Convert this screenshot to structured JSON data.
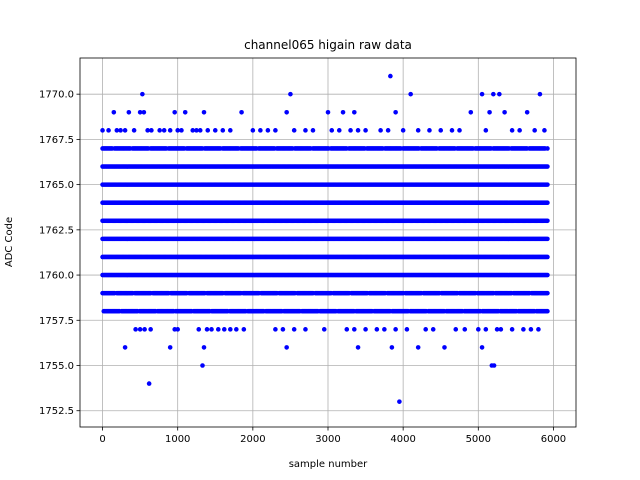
{
  "chart_data": {
    "type": "scatter",
    "title": "channel065 higain raw data",
    "xlabel": "sample number",
    "ylabel": "ADC Code",
    "xlim": [
      -300,
      6300
    ],
    "ylim": [
      1751.6,
      1772.0
    ],
    "xticks": [
      0,
      1000,
      2000,
      3000,
      4000,
      5000,
      6000
    ],
    "xtick_labels": [
      "0",
      "1000",
      "2000",
      "3000",
      "4000",
      "5000",
      "6000"
    ],
    "yticks": [
      1752.5,
      1755.0,
      1757.5,
      1760.0,
      1762.5,
      1765.0,
      1767.5,
      1770.0
    ],
    "ytick_labels": [
      "1752.5",
      "1755.0",
      "1757.5",
      "1760.0",
      "1762.5",
      "1765.0",
      "1767.5",
      "1770.0"
    ],
    "grid": true,
    "marker_color": "#0000ff",
    "series": [
      {
        "points": [
          [
            0,
            1768
          ],
          [
            80,
            1768
          ],
          [
            150,
            1769
          ],
          [
            190,
            1768
          ],
          [
            240,
            1768
          ],
          [
            300,
            1768
          ],
          [
            350,
            1769
          ],
          [
            420,
            1768
          ],
          [
            500,
            1769
          ],
          [
            530,
            1770
          ],
          [
            550,
            1769
          ],
          [
            600,
            1768
          ],
          [
            650,
            1768
          ],
          [
            760,
            1768
          ],
          [
            820,
            1768
          ],
          [
            900,
            1768
          ],
          [
            960,
            1769
          ],
          [
            1000,
            1768
          ],
          [
            1050,
            1768
          ],
          [
            1100,
            1769
          ],
          [
            1200,
            1768
          ],
          [
            1250,
            1768
          ],
          [
            1300,
            1768
          ],
          [
            1350,
            1769
          ],
          [
            1400,
            1768
          ],
          [
            1500,
            1768
          ],
          [
            1600,
            1768
          ],
          [
            1700,
            1768
          ],
          [
            1850,
            1769
          ],
          [
            2000,
            1768
          ],
          [
            2100,
            1768
          ],
          [
            2200,
            1768
          ],
          [
            2300,
            1768
          ],
          [
            2450,
            1769
          ],
          [
            2500,
            1770
          ],
          [
            2550,
            1768
          ],
          [
            2700,
            1768
          ],
          [
            2800,
            1768
          ],
          [
            3000,
            1769
          ],
          [
            3050,
            1768
          ],
          [
            3150,
            1768
          ],
          [
            3200,
            1769
          ],
          [
            3300,
            1768
          ],
          [
            3350,
            1769
          ],
          [
            3400,
            1768
          ],
          [
            3500,
            1768
          ],
          [
            3700,
            1768
          ],
          [
            3800,
            1768
          ],
          [
            3830,
            1771
          ],
          [
            3900,
            1769
          ],
          [
            4000,
            1768
          ],
          [
            4100,
            1770
          ],
          [
            4200,
            1768
          ],
          [
            4350,
            1768
          ],
          [
            4500,
            1768
          ],
          [
            4650,
            1768
          ],
          [
            4750,
            1768
          ],
          [
            4900,
            1769
          ],
          [
            5050,
            1770
          ],
          [
            5100,
            1768
          ],
          [
            5150,
            1769
          ],
          [
            5200,
            1770
          ],
          [
            5280,
            1770
          ],
          [
            5350,
            1769
          ],
          [
            5450,
            1768
          ],
          [
            5550,
            1768
          ],
          [
            5650,
            1769
          ],
          [
            5750,
            1768
          ],
          [
            5820,
            1770
          ],
          [
            5880,
            1768
          ],
          [
            300,
            1756
          ],
          [
            900,
            1756
          ],
          [
            1350,
            1756
          ],
          [
            2450,
            1756
          ],
          [
            3400,
            1756
          ],
          [
            3850,
            1756
          ],
          [
            4200,
            1756
          ],
          [
            4550,
            1756
          ],
          [
            5050,
            1756
          ],
          [
            1330,
            1755
          ],
          [
            5180,
            1755
          ],
          [
            5210,
            1755
          ],
          [
            620,
            1754
          ],
          [
            3950,
            1753
          ],
          [
            440,
            1757
          ],
          [
            500,
            1757
          ],
          [
            560,
            1757
          ],
          [
            640,
            1757
          ],
          [
            960,
            1757
          ],
          [
            1000,
            1757
          ],
          [
            1280,
            1757
          ],
          [
            1390,
            1757
          ],
          [
            1450,
            1757
          ],
          [
            1540,
            1757
          ],
          [
            1620,
            1757
          ],
          [
            1700,
            1757
          ],
          [
            1780,
            1757
          ],
          [
            1880,
            1757
          ],
          [
            2300,
            1757
          ],
          [
            2400,
            1757
          ],
          [
            2550,
            1757
          ],
          [
            2700,
            1757
          ],
          [
            2950,
            1757
          ],
          [
            3250,
            1757
          ],
          [
            3350,
            1757
          ],
          [
            3500,
            1757
          ],
          [
            3650,
            1757
          ],
          [
            3750,
            1757
          ],
          [
            3900,
            1757
          ],
          [
            4050,
            1757
          ],
          [
            4300,
            1757
          ],
          [
            4400,
            1757
          ],
          [
            4700,
            1757
          ],
          [
            4820,
            1757
          ],
          [
            5000,
            1757
          ],
          [
            5100,
            1757
          ],
          [
            5250,
            1757
          ],
          [
            5300,
            1757
          ],
          [
            5450,
            1757
          ],
          [
            5600,
            1757
          ],
          [
            5700,
            1757
          ],
          [
            5800,
            1757
          ]
        ],
        "dense_levels": [
          1758,
          1759,
          1760,
          1761,
          1762,
          1763,
          1764,
          1765,
          1766,
          1767
        ],
        "dense_x_range": [
          0,
          5920
        ]
      }
    ]
  }
}
